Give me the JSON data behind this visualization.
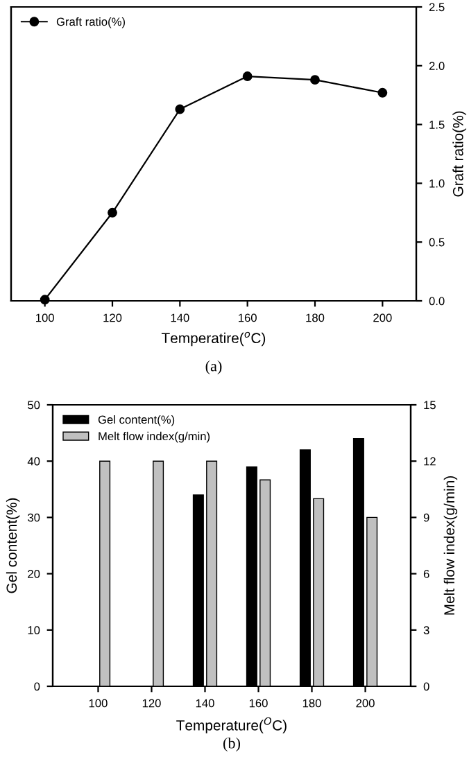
{
  "chart_data": [
    {
      "type": "line",
      "xlabel": "Temperatire($^{o}$C)",
      "y2label": "Graft ratio(%)",
      "annotations": [
        "(a)"
      ],
      "x": [
        100,
        120,
        140,
        160,
        180,
        200
      ],
      "xlim": [
        90,
        210
      ],
      "xticks": [
        100,
        120,
        140,
        160,
        180,
        200
      ],
      "y2lim": [
        0,
        2.5
      ],
      "y2ticks": [
        {
          "value": 0,
          "label": "0.0"
        },
        0.5,
        {
          "value": 1,
          "label": "1.0"
        },
        1.5,
        {
          "value": 2,
          "label": "2.0"
        },
        2.5
      ],
      "series": [
        {
          "name": "Graft ratio(%)",
          "color": "#000000",
          "axis": "y2",
          "values": [
            0.01,
            0.75,
            1.63,
            1.91,
            1.88,
            1.77
          ]
        }
      ],
      "marker": "circle",
      "line_style": "solid",
      "legend": "top left",
      "grid": false
    },
    {
      "type": "bar",
      "xlabel": "Temperature($^{O}$C)",
      "ylabel": "Gel content(%)",
      "y2label": "Melt flow index(g/min)",
      "annotations": [
        "(b)"
      ],
      "categories": [
        "100",
        "120",
        "140",
        "160",
        "180",
        "200"
      ],
      "ylim": [
        0,
        50
      ],
      "yticks": [
        0,
        10,
        20,
        30,
        40,
        50
      ],
      "y2lim": [
        0,
        15
      ],
      "y2ticks": [
        0,
        3,
        6,
        9,
        12,
        15
      ],
      "series": [
        {
          "name": "Gel content(%)",
          "color": "#000000",
          "values": [
            null,
            null,
            34,
            39,
            42,
            44
          ]
        },
        {
          "name": "Melt flow index(g/min)",
          "color": "#c0c0c0",
          "axis": "y2",
          "values": [
            12,
            12,
            12,
            11,
            10,
            9
          ]
        }
      ],
      "legend": "top left",
      "grid": false
    }
  ]
}
